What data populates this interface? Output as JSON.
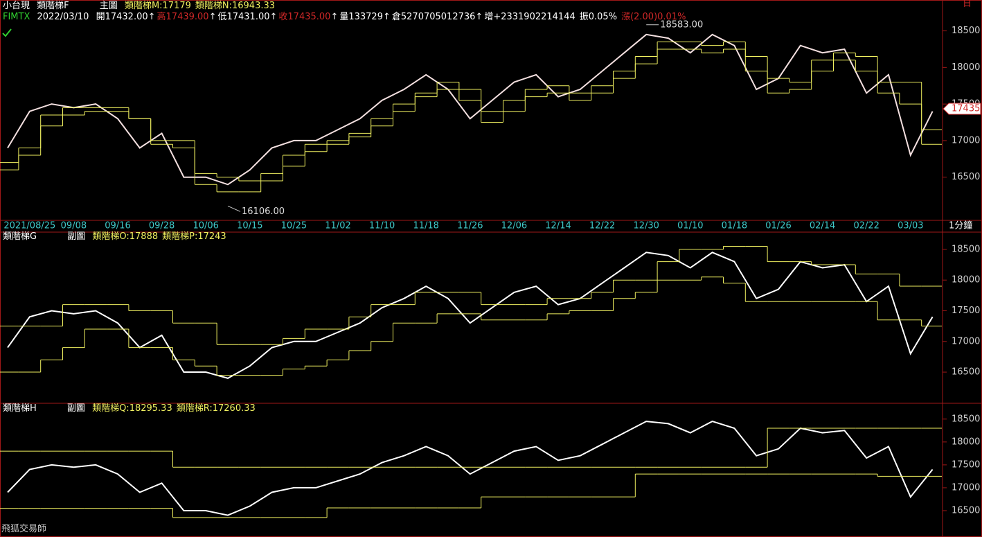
{
  "chart_data": [
    {
      "type": "line",
      "title": "小台現",
      "subtitle": "類階梯F",
      "panel_label": "主圖",
      "symbol": "FIMTX",
      "date": "2022/03/10",
      "quote": [
        {
          "text": "開17432.00",
          "color": "#ffffff",
          "arrow": true
        },
        {
          "text": "高17439.00",
          "color": "#d02828",
          "arrow": true
        },
        {
          "text": "低17431.00",
          "color": "#ffffff",
          "arrow": true
        },
        {
          "text": "收17435.00",
          "color": "#d02828",
          "arrow": true
        },
        {
          "text": "量133729",
          "color": "#ffffff",
          "arrow": true
        },
        {
          "text": "倉5270705012736",
          "color": "#ffffff",
          "arrow": true
        },
        {
          "text": "增+2331902214144",
          "color": "#ffffff",
          "arrow": false
        },
        {
          "text": "振0.05%",
          "color": "#ffffff",
          "arrow": false
        },
        {
          "text": "漲(2.00)0.01%",
          "color": "#d02828",
          "arrow": false
        }
      ],
      "period": "1分鐘",
      "categories": [
        null,
        "2021/08/25",
        null,
        "09/08",
        null,
        "09/16",
        null,
        "09/28",
        null,
        "10/06",
        null,
        "10/15",
        null,
        "10/25",
        null,
        "11/02",
        null,
        "11/10",
        null,
        "11/18",
        null,
        "11/26",
        null,
        "12/06",
        null,
        "12/14",
        null,
        "12/22",
        null,
        "12/30",
        null,
        "01/10",
        null,
        "01/18",
        null,
        "01/26",
        null,
        "02/14",
        null,
        "02/22",
        null,
        "03/03",
        null
      ],
      "series": [
        {
          "color": "#f4e0e0",
          "step": false,
          "values": [
            16900,
            17400,
            17500,
            17450,
            17500,
            17300,
            16900,
            17100,
            16500,
            16500,
            16400,
            16600,
            16900,
            17000,
            17000,
            17150,
            17300,
            17550,
            17700,
            17900,
            17700,
            17300,
            17550,
            17800,
            17900,
            17600,
            17700,
            17950,
            18200,
            18450,
            18400,
            18200,
            18450,
            18300,
            17700,
            17850,
            18300,
            18200,
            18250,
            17650,
            17900,
            16800,
            17400
          ]
        },
        {
          "name": "類階梯M:17179",
          "color": "#f0f060",
          "step": true,
          "values": [
            16700,
            16900,
            17350,
            17450,
            17450,
            17450,
            17300,
            17000,
            17000,
            16550,
            16500,
            16450,
            16550,
            16800,
            16950,
            17000,
            17100,
            17300,
            17500,
            17650,
            17800,
            17700,
            17400,
            17550,
            17700,
            17750,
            17650,
            17750,
            17950,
            18150,
            18350,
            18350,
            18300,
            18350,
            18150,
            17850,
            17800,
            18100,
            18200,
            18150,
            17800,
            17800,
            17150
          ]
        },
        {
          "name": "類階梯N:16943.33",
          "color": "#f0f060",
          "step": true,
          "values": [
            16600,
            16800,
            17200,
            17350,
            17400,
            17400,
            17300,
            16950,
            16900,
            16400,
            16300,
            16300,
            16450,
            16650,
            16850,
            16950,
            17050,
            17200,
            17400,
            17600,
            17700,
            17550,
            17250,
            17400,
            17600,
            17650,
            17550,
            17650,
            17850,
            18050,
            18250,
            18250,
            18200,
            18250,
            17950,
            17650,
            17700,
            17950,
            18100,
            17950,
            17650,
            17500,
            16950
          ]
        }
      ],
      "annotations": [
        {
          "value": 18583,
          "label": "18583.00"
        },
        {
          "value": 16106,
          "label": "16106.00"
        }
      ],
      "last_price": 17435,
      "ylim": [
        15910,
        18780
      ],
      "yticks": [
        16500,
        17000,
        17500,
        18000,
        18500
      ]
    },
    {
      "type": "line",
      "title": "類階梯G",
      "panel_label": "副圖",
      "series": [
        {
          "color": "#ffffff",
          "step": false,
          "values": [
            16900,
            17400,
            17500,
            17450,
            17500,
            17300,
            16900,
            17100,
            16500,
            16500,
            16400,
            16600,
            16900,
            17000,
            17000,
            17150,
            17300,
            17550,
            17700,
            17900,
            17700,
            17300,
            17550,
            17800,
            17900,
            17600,
            17700,
            17950,
            18200,
            18450,
            18400,
            18200,
            18450,
            18300,
            17700,
            17850,
            18300,
            18200,
            18250,
            17650,
            17900,
            16800,
            17400
          ]
        },
        {
          "name": "類階梯O:17888",
          "color": "#f0f060",
          "step": true,
          "values": [
            17250,
            17250,
            17250,
            17600,
            17600,
            17600,
            17500,
            17500,
            17300,
            17300,
            16950,
            16950,
            16950,
            17050,
            17200,
            17200,
            17400,
            17600,
            17600,
            17800,
            17800,
            17800,
            17600,
            17600,
            17600,
            17700,
            17700,
            17800,
            18000,
            18000,
            18300,
            18500,
            18500,
            18550,
            18550,
            18300,
            18300,
            18250,
            18250,
            18100,
            18100,
            17900,
            17900
          ]
        },
        {
          "name": "類階梯P:17243",
          "color": "#f0f060",
          "step": true,
          "values": [
            16500,
            16500,
            16700,
            16900,
            17200,
            17200,
            16900,
            16900,
            16700,
            16600,
            16450,
            16450,
            16450,
            16550,
            16600,
            16700,
            16850,
            17000,
            17300,
            17300,
            17450,
            17450,
            17350,
            17350,
            17350,
            17450,
            17500,
            17500,
            17700,
            17800,
            18000,
            18000,
            18050,
            17950,
            17650,
            17650,
            17650,
            17650,
            17650,
            17650,
            17350,
            17350,
            17250
          ]
        }
      ],
      "ylim": [
        16015,
        18770
      ],
      "yticks": [
        16500,
        17000,
        17500,
        18000,
        18500
      ]
    },
    {
      "type": "line",
      "title": "類階梯H",
      "panel_label": "副圖",
      "series": [
        {
          "color": "#ffffff",
          "step": false,
          "values": [
            16900,
            17400,
            17500,
            17450,
            17500,
            17300,
            16900,
            17100,
            16500,
            16500,
            16400,
            16600,
            16900,
            17000,
            17000,
            17150,
            17300,
            17550,
            17700,
            17900,
            17700,
            17300,
            17550,
            17800,
            17900,
            17600,
            17700,
            17950,
            18200,
            18450,
            18400,
            18200,
            18450,
            18300,
            17700,
            17850,
            18300,
            18200,
            18250,
            17650,
            17900,
            16800,
            17400
          ]
        },
        {
          "name": "類階梯Q:18295.33",
          "color": "#f0f060",
          "step": true,
          "values": [
            17800,
            17800,
            17800,
            17800,
            17800,
            17800,
            17800,
            17800,
            17450,
            17450,
            17450,
            17450,
            17450,
            17450,
            17450,
            17450,
            17450,
            17450,
            17450,
            17450,
            17450,
            17450,
            17450,
            17450,
            17450,
            17450,
            17450,
            17450,
            17450,
            17450,
            17450,
            17450,
            17450,
            17450,
            17450,
            18300,
            18300,
            18300,
            18300,
            18300,
            18300,
            18300,
            18300
          ]
        },
        {
          "name": "類階梯R:17260.33",
          "color": "#f0f060",
          "step": true,
          "values": [
            16550,
            16550,
            16550,
            16550,
            16550,
            16550,
            16550,
            16550,
            16350,
            16350,
            16350,
            16350,
            16350,
            16350,
            16350,
            16560,
            16560,
            16560,
            16560,
            16560,
            16560,
            16560,
            16800,
            16800,
            16800,
            16800,
            16800,
            16800,
            16800,
            17300,
            17300,
            17300,
            17300,
            17300,
            17300,
            17300,
            17300,
            17300,
            17300,
            17300,
            17250,
            17250,
            17250
          ]
        }
      ],
      "ylim": [
        15970,
        18830
      ],
      "yticks": [
        16500,
        17000,
        17500,
        18000,
        18500
      ]
    }
  ],
  "footer": "飛狐交易師",
  "corner_label": "日"
}
